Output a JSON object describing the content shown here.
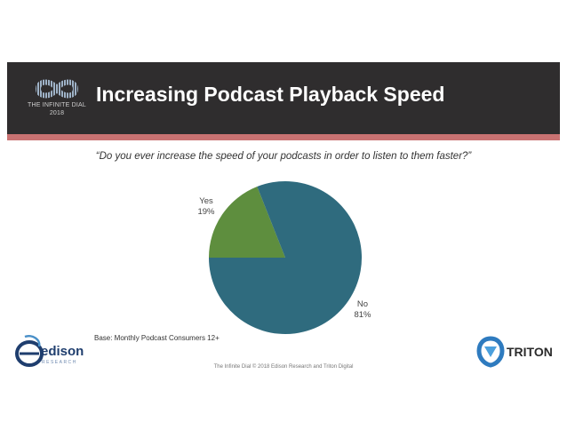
{
  "header": {
    "logo_line1": "THE INFINITE DIAL",
    "logo_line2": "2018",
    "title": "Increasing Podcast Playback Speed"
  },
  "question": "“Do you ever increase the speed of your podcasts in order to listen to them faster?”",
  "chart_data": {
    "type": "pie",
    "title": "",
    "slices": [
      {
        "label": "Yes",
        "value": 19,
        "value_label": "19%",
        "color": "#5e8e3e"
      },
      {
        "label": "No",
        "value": 81,
        "value_label": "81%",
        "color": "#2f6b7e"
      }
    ]
  },
  "base_note": "Base: Monthly Podcast Consumers 12+",
  "footer": "The Infinite Dial © 2018 Edison Research and Triton Digital",
  "brands": {
    "edison_word": "edison",
    "edison_sub": "RESEARCH",
    "triton_word": "TRITON"
  },
  "colors": {
    "banner": "#2f2d2e",
    "stripe": "#c97272"
  }
}
